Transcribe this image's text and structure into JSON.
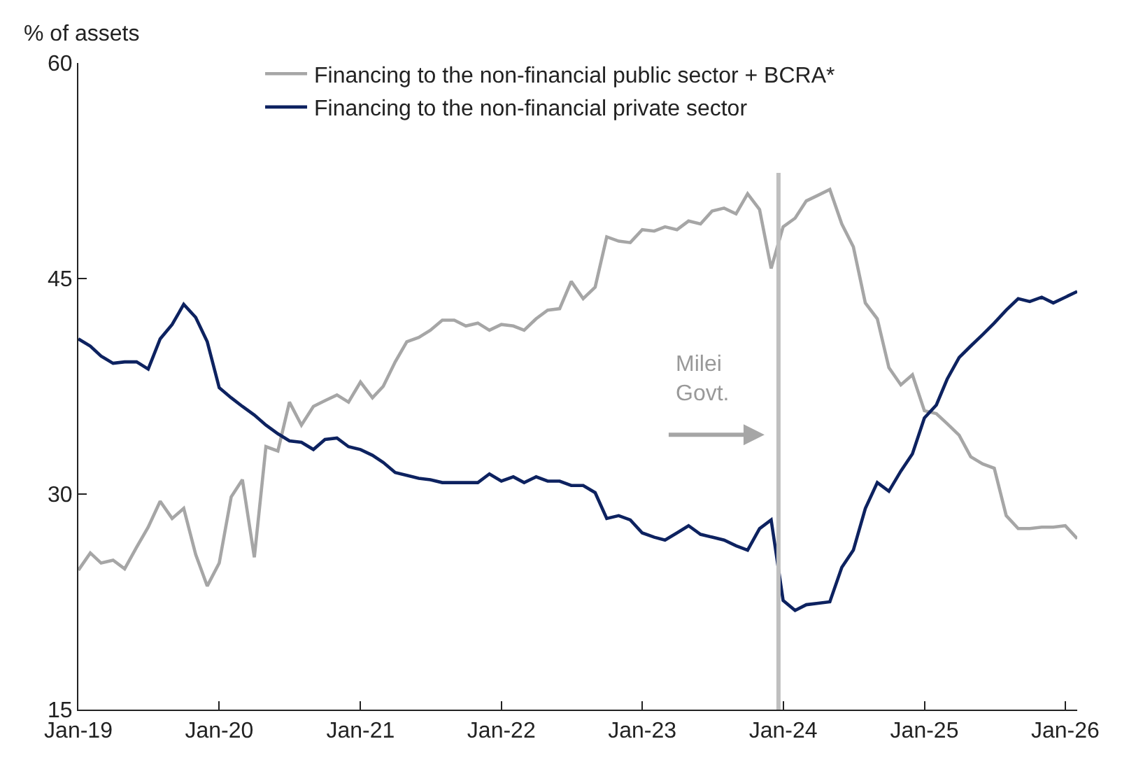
{
  "chart_data": {
    "type": "line",
    "ylabel": "% of assets",
    "x": [
      "2019-01",
      "2019-02",
      "2019-03",
      "2019-04",
      "2019-05",
      "2019-06",
      "2019-07",
      "2019-08",
      "2019-09",
      "2019-10",
      "2019-11",
      "2019-12",
      "2020-01",
      "2020-02",
      "2020-03",
      "2020-04",
      "2020-05",
      "2020-06",
      "2020-07",
      "2020-08",
      "2020-09",
      "2020-10",
      "2020-11",
      "2020-12",
      "2021-01",
      "2021-02",
      "2021-03",
      "2021-04",
      "2021-05",
      "2021-06",
      "2021-07",
      "2021-08",
      "2021-09",
      "2021-10",
      "2021-11",
      "2021-12",
      "2022-01",
      "2022-02",
      "2022-03",
      "2022-04",
      "2022-05",
      "2022-06",
      "2022-07",
      "2022-08",
      "2022-09",
      "2022-10",
      "2022-11",
      "2022-12",
      "2023-01",
      "2023-02",
      "2023-03",
      "2023-04",
      "2023-05",
      "2023-06",
      "2023-07",
      "2023-08",
      "2023-09",
      "2023-10",
      "2023-11",
      "2023-12",
      "2024-01",
      "2024-02",
      "2024-03",
      "2024-04",
      "2024-05",
      "2024-06",
      "2024-07",
      "2024-08",
      "2024-09",
      "2024-10",
      "2024-11",
      "2024-12",
      "2025-01",
      "2025-02",
      "2025-03",
      "2025-04",
      "2025-05",
      "2025-06",
      "2025-07",
      "2025-08",
      "2025-09",
      "2025-10",
      "2025-11",
      "2025-12",
      "2026-01",
      "2026-02"
    ],
    "series": [
      {
        "name": "Financing to the non-financial public sector + BCRA*",
        "color": "#a6a6a6",
        "values": [
          24.7,
          25.9,
          25.2,
          25.4,
          24.8,
          26.3,
          27.7,
          29.5,
          28.3,
          29.0,
          25.8,
          23.6,
          25.2,
          29.8,
          31.0,
          25.6,
          33.3,
          33.0,
          36.4,
          34.8,
          36.1,
          36.5,
          36.9,
          36.4,
          37.8,
          36.7,
          37.5,
          39.2,
          40.6,
          40.9,
          41.4,
          42.1,
          42.1,
          41.7,
          41.9,
          41.4,
          41.8,
          41.7,
          41.4,
          42.2,
          42.8,
          42.9,
          44.8,
          43.6,
          44.4,
          47.9,
          47.6,
          47.5,
          48.4,
          48.3,
          48.6,
          48.4,
          49.0,
          48.8,
          49.7,
          49.9,
          49.5,
          50.9,
          49.8,
          45.7,
          48.6,
          49.2,
          50.4,
          50.8,
          51.2,
          48.8,
          47.2,
          43.3,
          42.2,
          38.8,
          37.6,
          38.3,
          35.8,
          35.6,
          34.9,
          34.1,
          32.6,
          32.1,
          31.8,
          28.5,
          27.6,
          27.6,
          27.7,
          27.7,
          27.8,
          26.9
        ]
      },
      {
        "name": "Financing to the non-financial private sector",
        "color": "#0d2260",
        "values": [
          40.8,
          40.3,
          39.6,
          39.1,
          39.2,
          39.2,
          38.7,
          40.8,
          41.8,
          43.2,
          42.3,
          40.6,
          37.4,
          36.7,
          36.1,
          35.5,
          34.8,
          34.2,
          33.7,
          33.6,
          33.1,
          33.8,
          33.9,
          33.3,
          33.1,
          32.7,
          32.2,
          31.5,
          31.3,
          31.1,
          31.0,
          30.8,
          30.8,
          30.8,
          30.8,
          31.4,
          30.9,
          31.2,
          30.8,
          31.2,
          30.9,
          30.9,
          30.6,
          30.6,
          30.1,
          28.3,
          28.5,
          28.2,
          27.3,
          27.0,
          26.8,
          27.3,
          27.8,
          27.2,
          27.0,
          26.8,
          26.4,
          26.1,
          27.6,
          28.2,
          22.6,
          21.9,
          22.3,
          22.4,
          22.5,
          24.9,
          26.1,
          29.0,
          30.8,
          30.2,
          31.6,
          32.8,
          35.3,
          36.2,
          38.0,
          39.5,
          40.3,
          41.1,
          41.9,
          42.8,
          43.6,
          43.4,
          43.7,
          43.3,
          43.7,
          44.1
        ]
      }
    ],
    "xlim": [
      "2019-01-01",
      "2026-02-01"
    ],
    "xticks": [
      {
        "value": "2019-01-01",
        "label": "Jan-19"
      },
      {
        "value": "2020-01-01",
        "label": "Jan-20"
      },
      {
        "value": "2021-01-01",
        "label": "Jan-21"
      },
      {
        "value": "2022-01-01",
        "label": "Jan-22"
      },
      {
        "value": "2023-01-01",
        "label": "Jan-23"
      },
      {
        "value": "2024-01-01",
        "label": "Jan-24"
      },
      {
        "value": "2025-01-01",
        "label": "Jan-25"
      },
      {
        "value": "2026-01-01",
        "label": "Jan-26"
      }
    ],
    "ylim": [
      15,
      60
    ],
    "yticks": [
      15,
      30,
      45,
      60
    ],
    "ref_lines": [
      {
        "axis": "x",
        "value": "2023-12-20",
        "label": "Milei\nGovt.",
        "color": "#bfbfbf"
      }
    ],
    "grid": false,
    "legend": "top left",
    "marker": "none",
    "line_style": "solid"
  }
}
